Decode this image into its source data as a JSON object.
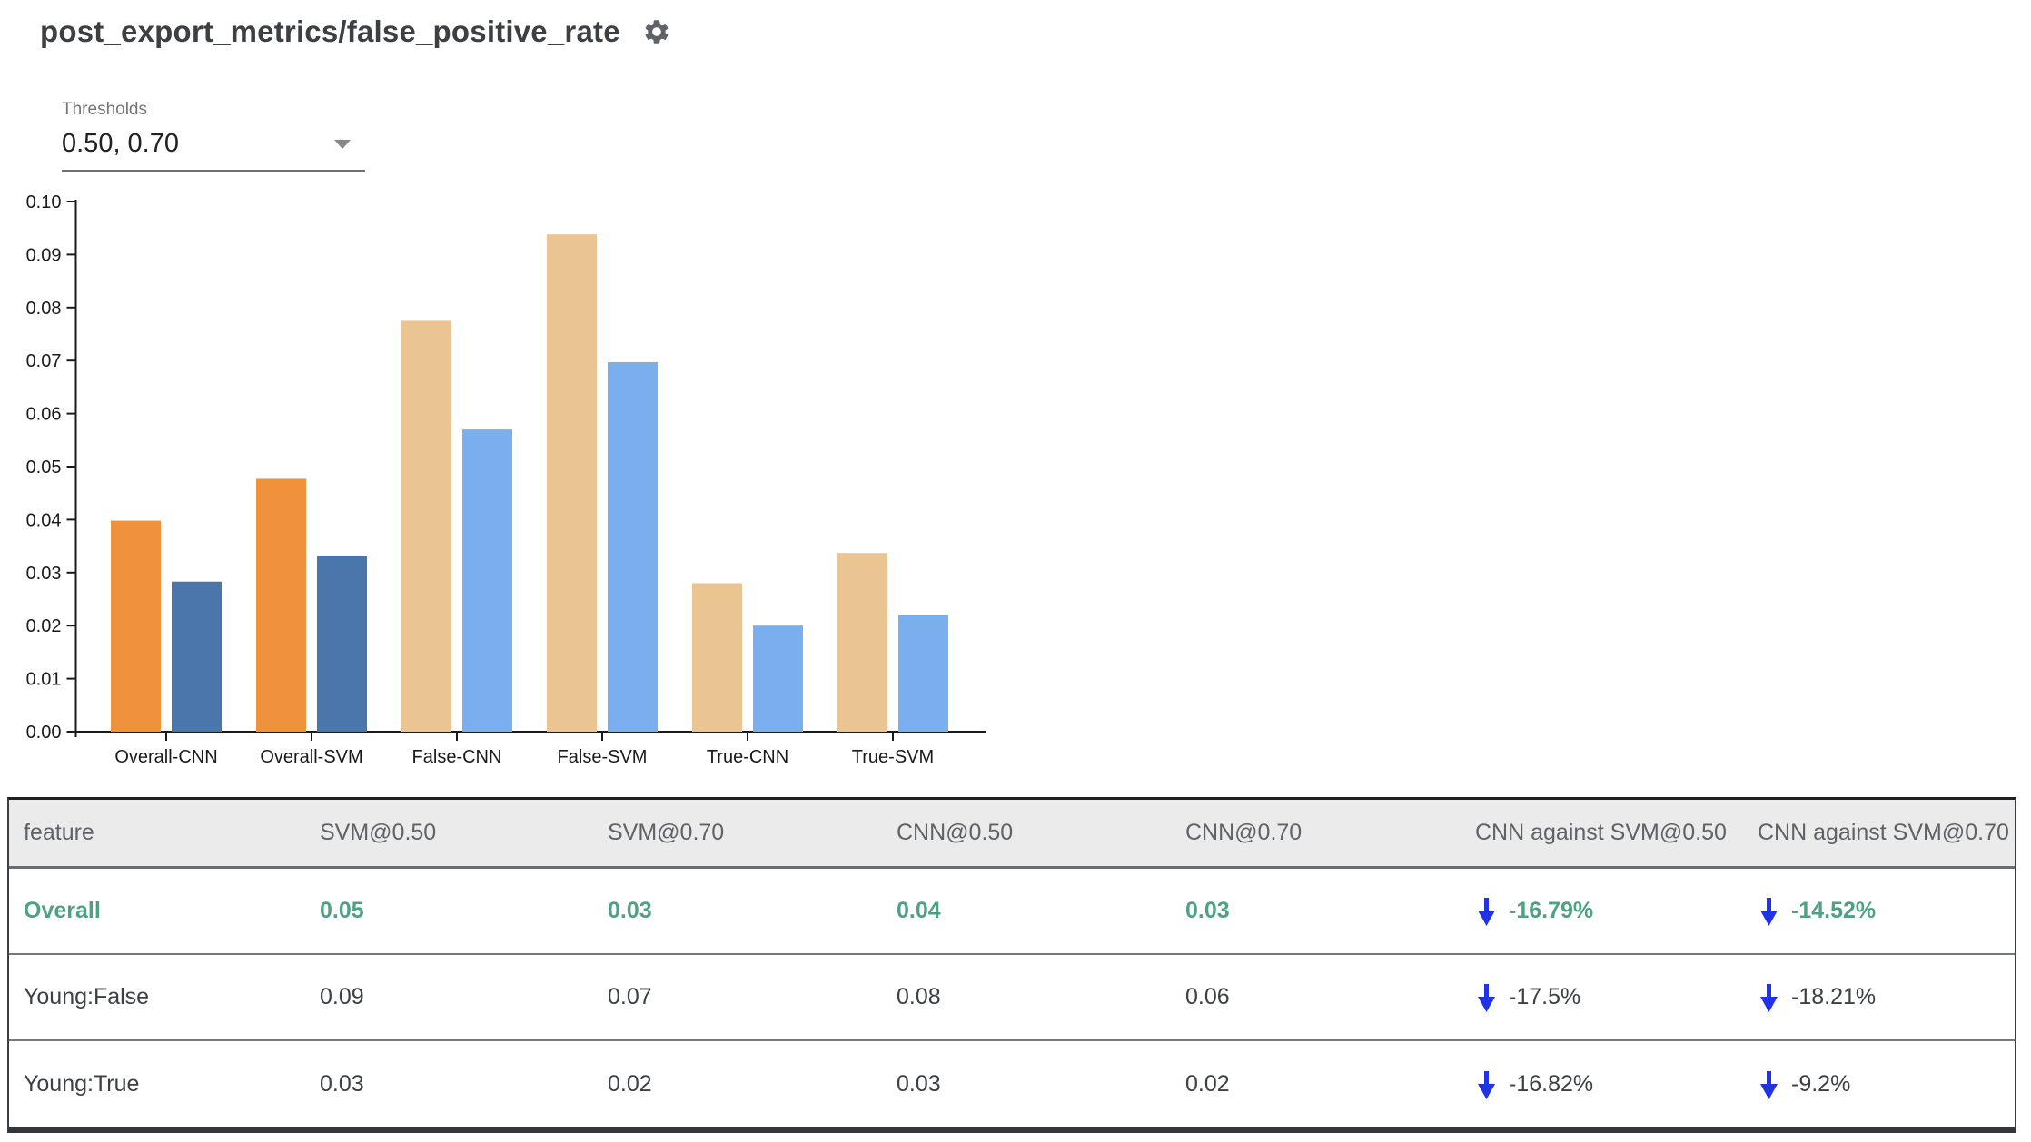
{
  "header": {
    "title": "post_export_metrics/false_positive_rate"
  },
  "controls": {
    "thresholds_label": "Thresholds",
    "thresholds_value": "0.50, 0.70"
  },
  "chart_data": {
    "type": "bar",
    "categories": [
      "Overall-CNN",
      "Overall-SVM",
      "False-CNN",
      "False-SVM",
      "True-CNN",
      "True-SVM"
    ],
    "series": [
      {
        "name": "threshold 0.50",
        "values": [
          0.0398,
          0.0477,
          0.0775,
          0.0938,
          0.028,
          0.0337
        ]
      },
      {
        "name": "threshold 0.70",
        "values": [
          0.0283,
          0.0332,
          0.057,
          0.0697,
          0.02,
          0.022
        ]
      }
    ],
    "bar_colors": [
      [
        "#F0913C",
        "#4B76AC"
      ],
      [
        "#F0913C",
        "#4B76AC"
      ],
      [
        "#EAC491",
        "#79AFED"
      ],
      [
        "#EAC491",
        "#79AFED"
      ],
      [
        "#EAC491",
        "#79AFED"
      ],
      [
        "#EAC491",
        "#79AFED"
      ]
    ],
    "title": "",
    "xlabel": "",
    "ylabel": "",
    "ylim": [
      0,
      0.1
    ],
    "ytick_step": 0.01,
    "grid": false,
    "legend": "none"
  },
  "table": {
    "columns": [
      "feature",
      "SVM@0.50",
      "SVM@0.70",
      "CNN@0.50",
      "CNN@0.70",
      "CNN against SVM@0.50",
      "CNN against SVM@0.70"
    ],
    "rows": [
      {
        "feature": "Overall",
        "values": [
          "0.05",
          "0.03",
          "0.04",
          "0.03"
        ],
        "comparisons": [
          {
            "delta": "-16.79%",
            "direction": "down"
          },
          {
            "delta": "-14.52%",
            "direction": "down"
          }
        ],
        "highlighted": true
      },
      {
        "feature": "Young:False",
        "values": [
          "0.09",
          "0.07",
          "0.08",
          "0.06"
        ],
        "comparisons": [
          {
            "delta": "-17.5%",
            "direction": "down"
          },
          {
            "delta": "-18.21%",
            "direction": "down"
          }
        ],
        "highlighted": false
      },
      {
        "feature": "Young:True",
        "values": [
          "0.03",
          "0.02",
          "0.03",
          "0.02"
        ],
        "comparisons": [
          {
            "delta": "-16.82%",
            "direction": "down"
          },
          {
            "delta": "-9.2%",
            "direction": "down"
          }
        ],
        "highlighted": false
      }
    ]
  },
  "colors": {
    "accent_orange": "#F0913C",
    "accent_dark_blue": "#4B76AC",
    "muted_tan": "#EAC491",
    "muted_light_blue": "#79AFED",
    "highlight_green": "#4FA183",
    "arrow_blue": "#2233E6",
    "table_header_bg": "#EBEBEB",
    "axis_color": "#1a1a1a"
  }
}
